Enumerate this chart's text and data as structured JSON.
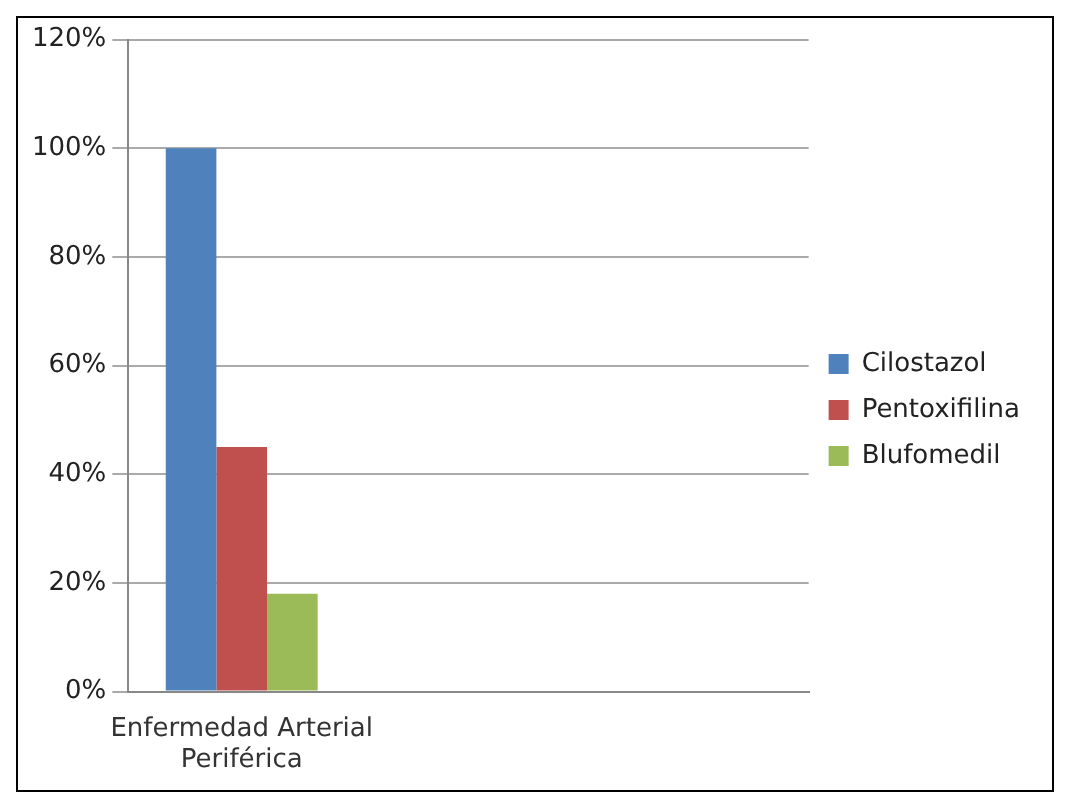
{
  "chart_data": {
    "type": "bar",
    "categories": [
      "Enfermedad Arterial Periférica",
      null,
      null
    ],
    "series": [
      {
        "name": "Cilostazol",
        "color": "#4f81bd",
        "values": [
          100,
          null,
          null
        ]
      },
      {
        "name": "Pentoxifilina",
        "color": "#c0504d",
        "values": [
          45,
          null,
          null
        ]
      },
      {
        "name": "Blufomedil",
        "color": "#9bbb59",
        "values": [
          18,
          null,
          null
        ]
      }
    ],
    "ylim": [
      0,
      120
    ],
    "yticks": [
      {
        "value": 0,
        "label": "0%"
      },
      {
        "value": 20,
        "label": "20%"
      },
      {
        "value": 40,
        "label": "40%"
      },
      {
        "value": 60,
        "label": "60%"
      },
      {
        "value": 80,
        "label": "80%"
      },
      {
        "value": 100,
        "label": "100%"
      },
      {
        "value": 120,
        "label": "120%"
      }
    ],
    "grid": "y",
    "legend": "right"
  }
}
